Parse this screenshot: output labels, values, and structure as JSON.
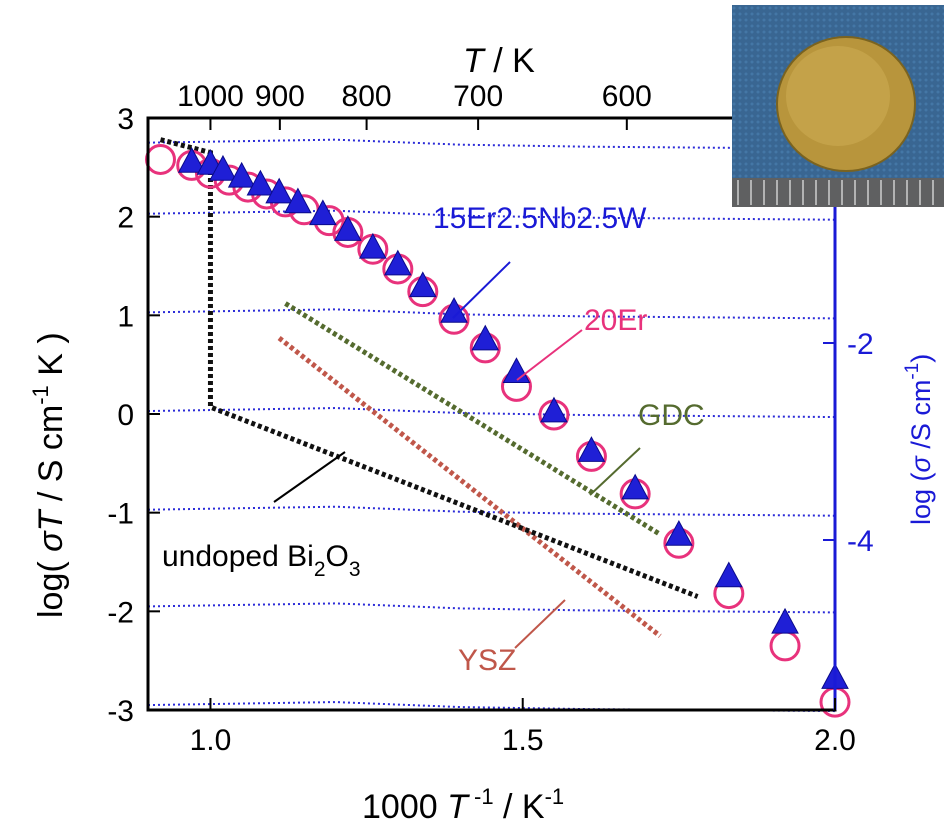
{
  "chart_data": {
    "type": "scatter",
    "x_axis": {
      "label_parts": [
        "1000 ",
        "T",
        " -1",
        " / K",
        "-1"
      ],
      "range": [
        0.9,
        2.0
      ],
      "ticks": [
        1.0,
        1.5,
        2.0
      ],
      "tick_labels": [
        "1.0",
        "1.5",
        "2.0"
      ]
    },
    "top_axis": {
      "label_parts": [
        "T",
        " / K"
      ],
      "ticks_K": [
        1000,
        900,
        800,
        700,
        600
      ],
      "tick_labels": [
        "1000",
        "900",
        "800",
        "700",
        "600"
      ]
    },
    "y_axis": {
      "label_parts": [
        "log(  ",
        "σT",
        " / S cm",
        "-1",
        " K )"
      ],
      "range": [
        -3,
        3
      ],
      "ticks": [
        -3,
        -2,
        -1,
        0,
        1,
        2,
        3
      ],
      "tick_labels": [
        "-3",
        "-2",
        "-1",
        "0",
        "1",
        "2",
        "3"
      ]
    },
    "right_axis": {
      "label_parts": [
        "log (",
        "σ",
        " /S cm",
        "-1",
        ")"
      ],
      "ticks": [
        -2,
        -4
      ],
      "tick_labels": [
        "-2",
        "-4"
      ],
      "color": "#1a1ad6"
    },
    "series": [
      {
        "name": "20Er",
        "marker": "circle",
        "color": "#e8327c",
        "x": [
          0.92,
          0.97,
          1.0,
          1.03,
          1.06,
          1.09,
          1.12,
          1.15,
          1.19,
          1.22,
          1.26,
          1.3,
          1.34,
          1.39,
          1.44,
          1.49,
          1.55,
          1.61,
          1.68,
          1.75,
          1.83,
          1.92,
          2.0
        ],
        "values": [
          2.58,
          2.52,
          2.44,
          2.37,
          2.3,
          2.23,
          2.15,
          2.07,
          1.96,
          1.84,
          1.67,
          1.47,
          1.24,
          0.96,
          0.67,
          0.28,
          -0.01,
          -0.43,
          -0.81,
          -1.31,
          -1.82,
          -2.35,
          -2.92
        ]
      },
      {
        "name": "15Er2.5Nb2.5W",
        "marker": "triangle",
        "color": "#1f1fd6",
        "x": [
          0.97,
          1.0,
          1.02,
          1.05,
          1.08,
          1.11,
          1.14,
          1.18,
          1.22,
          1.26,
          1.3,
          1.34,
          1.39,
          1.44,
          1.49,
          1.55,
          1.61,
          1.68,
          1.75,
          1.83,
          1.92,
          2.0
        ],
        "values": [
          2.55,
          2.53,
          2.47,
          2.4,
          2.32,
          2.24,
          2.14,
          2.02,
          1.86,
          1.68,
          1.51,
          1.29,
          1.03,
          0.75,
          0.42,
          0.02,
          -0.38,
          -0.76,
          -1.23,
          -1.65,
          -2.12,
          -2.68
        ]
      }
    ],
    "reference_lines": [
      {
        "name": "GDC",
        "color": "#556b2f",
        "x": [
          1.12,
          1.72
        ],
        "y": [
          1.12,
          -1.22
        ]
      },
      {
        "name": "YSZ",
        "color": "#c0574a",
        "x": [
          1.11,
          1.72
        ],
        "y": [
          0.77,
          -2.25
        ]
      },
      {
        "name": "undoped Bi2O3",
        "color": "#111111",
        "x": [
          0.92,
          1.0,
          1.0,
          1.78
        ],
        "y": [
          2.78,
          2.65,
          0.07,
          -1.85
        ]
      }
    ],
    "blue_gridlines_y": [
      2.75,
      2.03,
      1.03,
      0.03,
      -0.97,
      -1.95,
      -2.95
    ],
    "annotations": {
      "series_a": "15Er2.5Nb2.5W",
      "series_b": "20Er",
      "gdc": "GDC",
      "ysz": "YSZ",
      "bi_base": "undoped Bi",
      "bi_sub1": "2",
      "bi_mid": "O",
      "bi_sub2": "3"
    },
    "inset": "photo of round gold-colored pellet on blue background above a ruler"
  }
}
